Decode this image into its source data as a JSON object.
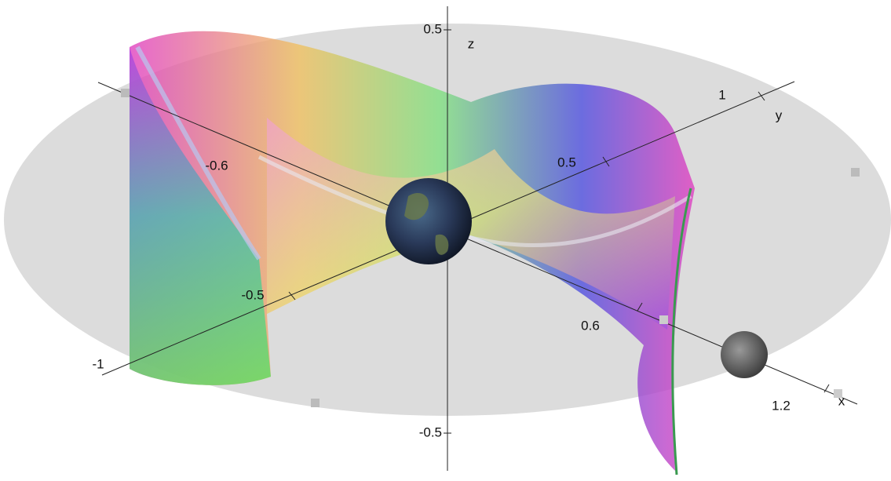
{
  "axes": {
    "x": {
      "label": "x",
      "ticks": [
        "-0.6",
        "0.6",
        "1.2"
      ]
    },
    "y": {
      "label": "y",
      "ticks": [
        "-1",
        "-0.5",
        "0.5",
        "1"
      ]
    },
    "z": {
      "label": "z",
      "ticks": [
        "0.5",
        "-0.5"
      ]
    }
  }
}
